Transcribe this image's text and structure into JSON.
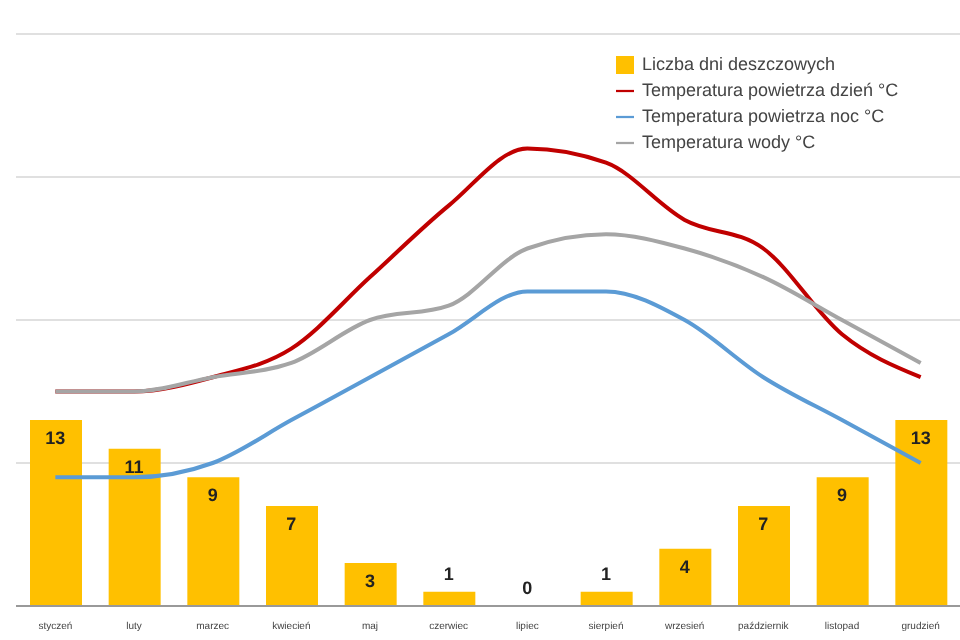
{
  "chart_data": {
    "type": "bar",
    "categories": [
      "styczeń",
      "luty",
      "marzec",
      "kwiecień",
      "maj",
      "czerwiec",
      "lipiec",
      "sierpień",
      "wrzesień",
      "październik",
      "listopad",
      "grudzień"
    ],
    "series": [
      {
        "name": "Liczba dni deszczowych",
        "color": "#ffc000",
        "values": [
          13,
          11,
          9,
          7,
          3,
          1,
          0,
          1,
          4,
          7,
          9,
          13
        ],
        "value_labels": [
          "13",
          "11",
          "9",
          "7",
          "3",
          "1",
          "0",
          "1",
          "4",
          "7",
          "9",
          "13"
        ]
      },
      {
        "name": "Temperatura powietrza dzień °C",
        "type": "line",
        "color": "#c00000",
        "values": [
          15,
          15,
          16,
          18,
          23,
          28,
          32,
          31,
          27,
          25,
          19,
          16
        ]
      },
      {
        "name": "Temperatura powietrza noc °C",
        "type": "line",
        "color": "#5b9bd5",
        "values": [
          9,
          9,
          10,
          13,
          16,
          19,
          22,
          22,
          20,
          16,
          13,
          10
        ]
      },
      {
        "name": "Temperatura wody °C",
        "type": "line",
        "color": "#a5a5a5",
        "values": [
          15,
          15,
          16,
          17,
          20,
          21,
          25,
          26,
          25,
          23,
          20,
          17
        ]
      }
    ],
    "ylim": [
      0,
      40
    ],
    "tick_labels": "x",
    "grid": "y",
    "legend": "top right",
    "marker": "none",
    "line_style": "solid"
  }
}
